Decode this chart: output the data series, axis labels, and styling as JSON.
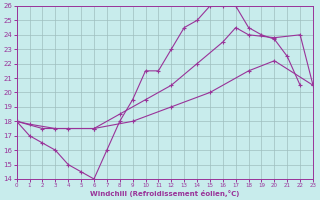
{
  "xlabel": "Windchill (Refroidissement éolien,°C)",
  "bg_color": "#c8ecec",
  "grid_color": "#9fbfbf",
  "line_color": "#993399",
  "xlim": [
    0,
    23
  ],
  "ylim": [
    14,
    26
  ],
  "xticks": [
    0,
    1,
    2,
    3,
    4,
    5,
    6,
    7,
    8,
    9,
    10,
    11,
    12,
    13,
    14,
    15,
    16,
    17,
    18,
    19,
    20,
    21,
    22,
    23
  ],
  "yticks": [
    14,
    15,
    16,
    17,
    18,
    19,
    20,
    21,
    22,
    23,
    24,
    25,
    26
  ],
  "curve1_x": [
    0,
    1,
    2,
    3,
    4,
    5,
    6,
    7,
    8,
    9,
    10,
    11,
    12,
    13,
    14,
    15,
    16,
    17,
    18,
    19,
    20,
    21,
    22
  ],
  "curve1_y": [
    18,
    17,
    16.5,
    16,
    15,
    14.5,
    14,
    16,
    18,
    19.5,
    21.5,
    21.5,
    23,
    24.5,
    25,
    26,
    26,
    26,
    24.5,
    24,
    23.7,
    22.5,
    20.5
  ],
  "curve2_x": [
    0,
    1,
    3,
    6,
    9,
    12,
    15,
    18,
    20,
    23
  ],
  "curve2_y": [
    18,
    17.8,
    17.5,
    17.5,
    18,
    19,
    20,
    21.5,
    22.2,
    20.5
  ],
  "curve3_x": [
    0,
    2,
    4,
    6,
    8,
    10,
    12,
    14,
    16,
    17,
    18,
    20,
    22,
    23
  ],
  "curve3_y": [
    18,
    17.5,
    17.5,
    17.5,
    18.5,
    19.5,
    20.5,
    22,
    23.5,
    24.5,
    24,
    23.8,
    24,
    20.5
  ]
}
